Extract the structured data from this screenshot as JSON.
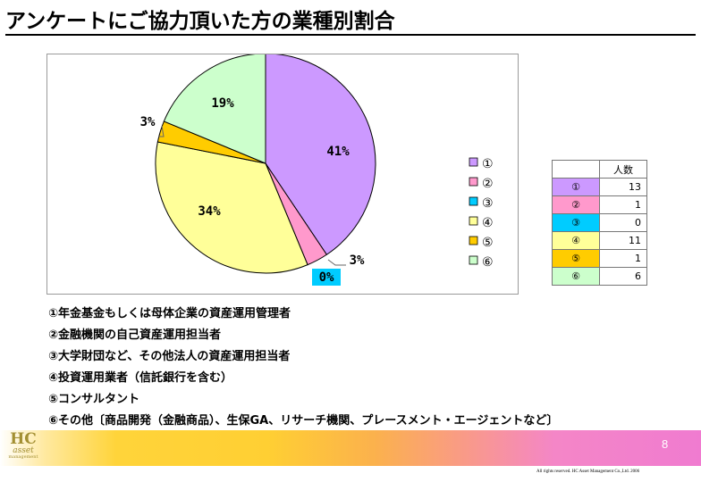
{
  "title": "アンケートにご協力頂いた方の業種別割合",
  "chart_data": {
    "type": "pie",
    "categories": [
      "①",
      "②",
      "③",
      "④",
      "⑤",
      "⑥"
    ],
    "values": [
      13,
      1,
      0,
      11,
      1,
      6
    ],
    "percent_labels": [
      "41%",
      "3%",
      "0%",
      "34%",
      "3%",
      "19%"
    ],
    "colors": [
      "#cc99ff",
      "#ff99cc",
      "#00ccff",
      "#ffff99",
      "#ffcc00",
      "#ccffcc"
    ],
    "legend_position": "right"
  },
  "table": {
    "header": "人数",
    "rows": [
      {
        "label": "①",
        "value": "13",
        "color": "#cc99ff"
      },
      {
        "label": "②",
        "value": "1",
        "color": "#ff99cc"
      },
      {
        "label": "③",
        "value": "0",
        "color": "#00ccff"
      },
      {
        "label": "④",
        "value": "11",
        "color": "#ffff99"
      },
      {
        "label": "⑤",
        "value": "1",
        "color": "#ffcc00"
      },
      {
        "label": "⑥",
        "value": "6",
        "color": "#ccffcc"
      }
    ]
  },
  "notes": [
    "①年金基金もしくは母体企業の資産運用管理者",
    "②金融機関の自己資産運用担当者",
    "③大学財団など、その他法人の資産運用担当者",
    "④投資運用業者（信託銀行を含む）",
    "⑤コンサルタント",
    "⑥その他〔商品開発（金融商品）、生保GA、リサーチ機関、プレースメント・エージェントなど〕"
  ],
  "logo": {
    "line1": "HC",
    "line2": "asset",
    "line3": "management"
  },
  "page_number": "8",
  "copyright": "All rights reserved. HC Asset Management Co.,Ltd. 2006"
}
